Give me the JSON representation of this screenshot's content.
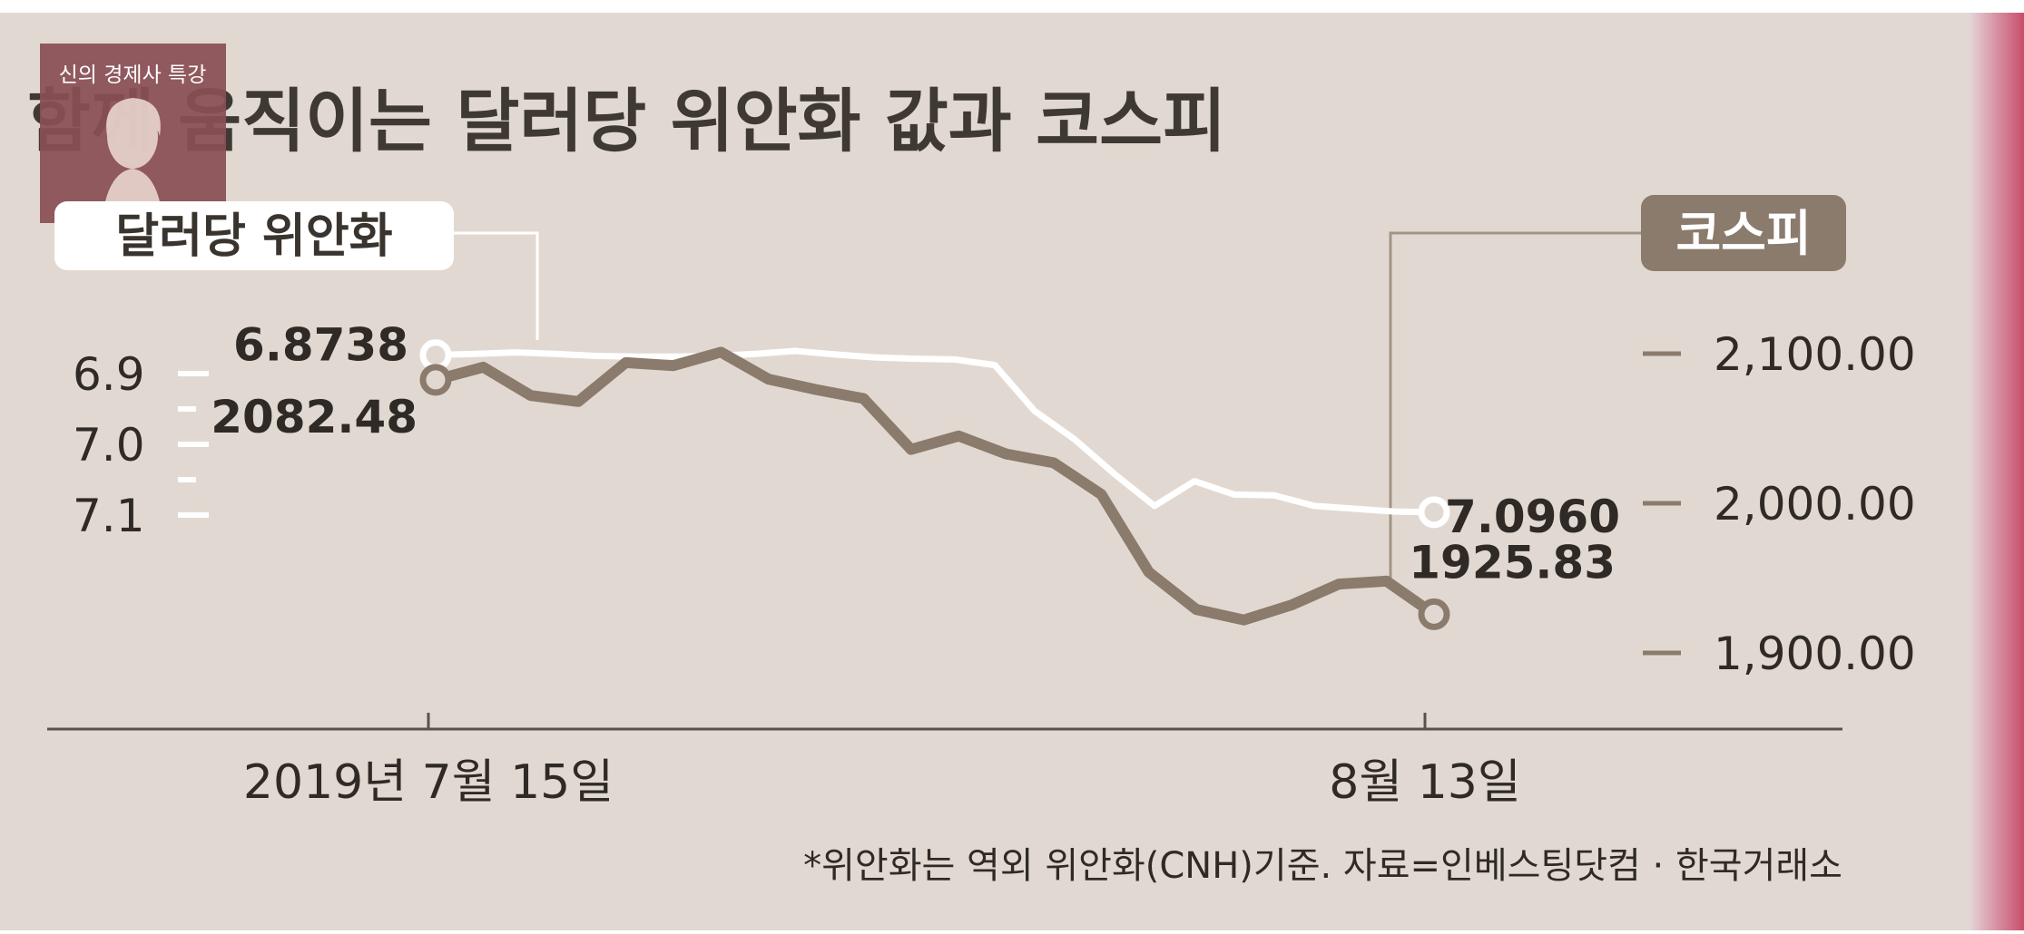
{
  "badge": {
    "text": "신의 경제사 특강"
  },
  "chart_data": {
    "type": "line",
    "title": "함께 움직이는 달러당 위안화 값과 코스피",
    "x_labels": [
      "2019년 7월 15일",
      "8월 13일"
    ],
    "left_axis": {
      "label": "달러당 위안화",
      "inverted": true,
      "ylim": [
        7.1,
        6.85
      ],
      "ticks": [
        {
          "value": 6.9,
          "label": "6.9"
        },
        {
          "value": 7.0,
          "label": "7.0"
        },
        {
          "value": 7.1,
          "label": "7.1"
        }
      ],
      "minor_ticks": [
        6.95,
        7.05
      ]
    },
    "right_axis": {
      "label": "코스피",
      "ylim": [
        1880,
        2120
      ],
      "ticks": [
        {
          "value": 2100,
          "label": "2,100.00"
        },
        {
          "value": 2000,
          "label": "2,000.00"
        },
        {
          "value": 1900,
          "label": "1,900.00"
        }
      ]
    },
    "series": [
      {
        "name": "달러당 위안화",
        "axis": "left",
        "color": "#ffffff",
        "values": [
          6.8738,
          6.872,
          6.87,
          6.872,
          6.875,
          6.876,
          6.876,
          6.875,
          6.872,
          6.868,
          6.873,
          6.877,
          6.879,
          6.88,
          6.888,
          6.953,
          6.993,
          7.042,
          7.087,
          7.052,
          7.071,
          7.072,
          7.087,
          7.091,
          7.095,
          7.096
        ],
        "start_label": "6.8738",
        "end_label": "7.0960"
      },
      {
        "name": "코스피",
        "axis": "right",
        "color": "#8a7b6c",
        "values": [
          2082.48,
          2091,
          2072,
          2068,
          2094,
          2092,
          2101,
          2083,
          2076,
          2070,
          2036,
          2045,
          2033,
          2027,
          2006,
          1954,
          1929,
          1922,
          1932,
          1946,
          1948,
          1925.83
        ],
        "start_label": "2082.48",
        "end_label": "1925.83"
      }
    ]
  },
  "footnote": "*위안화는 역외 위안화(CNH)기준. 자료=인베스팅닷컴 · 한국거래소"
}
